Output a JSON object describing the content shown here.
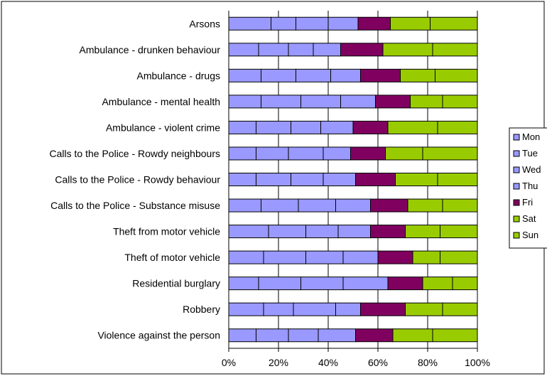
{
  "chart_data": {
    "type": "bar",
    "orientation": "horizontal",
    "stacked": "percent",
    "categories": [
      "Arsons",
      "Ambulance - drunken behaviour",
      "Ambulance - drugs",
      "Ambulance - mental health",
      "Ambulance - violent crime",
      "Calls to the Police - Rowdy neighbours",
      "Calls to the Police - Rowdy behaviour",
      "Calls to the Police - Substance misuse",
      "Theft from motor vehicle",
      "Theft of motor vehicle",
      "Residential burglary",
      "Robbery",
      "Violence against the person"
    ],
    "series": [
      {
        "name": "Mon",
        "color": "#9999ff",
        "values": [
          17,
          12,
          13,
          13,
          11,
          11,
          11,
          13,
          16,
          14,
          12,
          14,
          11
        ]
      },
      {
        "name": "Tue",
        "color": "#9999ff",
        "values": [
          10,
          12,
          14,
          16,
          14,
          13,
          14,
          15,
          15,
          17,
          17,
          12,
          13
        ]
      },
      {
        "name": "Wed",
        "color": "#9999ff",
        "values": [
          13,
          10,
          14,
          16,
          12,
          14,
          13,
          15,
          13,
          15,
          17,
          17,
          12
        ]
      },
      {
        "name": "Thu",
        "color": "#9999ff",
        "values": [
          12,
          11,
          12,
          14,
          13,
          11,
          13,
          14,
          13,
          14,
          18,
          10,
          15
        ]
      },
      {
        "name": "Fri",
        "color": "#800060",
        "values": [
          13,
          17,
          16,
          14,
          14,
          14,
          16,
          15,
          14,
          14,
          14,
          18,
          15
        ]
      },
      {
        "name": "Sat",
        "color": "#99cc00",
        "values": [
          16,
          20,
          14,
          13,
          20,
          15,
          17,
          14,
          14,
          11,
          12,
          15,
          16
        ]
      },
      {
        "name": "Sun",
        "color": "#99cc00",
        "values": [
          19,
          18,
          17,
          14,
          16,
          22,
          16,
          14,
          15,
          15,
          10,
          14,
          18
        ]
      }
    ],
    "xaxis": {
      "min": 0,
      "max": 100,
      "ticks": [
        "0%",
        "20%",
        "40%",
        "60%",
        "80%",
        "100%"
      ]
    },
    "grid": "vertical",
    "legend": {
      "position": "right",
      "entries": [
        "Mon",
        "Tue",
        "Wed",
        "Thu",
        "Fri",
        "Sat",
        "Sun"
      ]
    },
    "title": "",
    "xlabel": "",
    "ylabel": ""
  }
}
